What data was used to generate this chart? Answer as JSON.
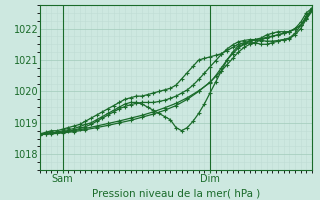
{
  "xlabel": "Pression niveau de la mer( hPa )",
  "bg_color": "#cde8e0",
  "line_color": "#1a6b2a",
  "grid_color_major": "#a8cfc0",
  "grid_color_minor": "#bfddd5",
  "ylim": [
    1017.5,
    1022.75
  ],
  "yticks": [
    1018,
    1019,
    1020,
    1021,
    1022
  ],
  "xlim": [
    0,
    48
  ],
  "sam_x": 4,
  "dim_x": 30,
  "series": [
    [
      0,
      1018.65,
      1,
      1018.7,
      2,
      1018.75,
      3,
      1018.75,
      4,
      1018.8,
      5,
      1018.85,
      6,
      1018.9,
      7,
      1018.95,
      8,
      1019.05,
      9,
      1019.15,
      10,
      1019.25,
      11,
      1019.35,
      12,
      1019.45,
      13,
      1019.55,
      14,
      1019.65,
      15,
      1019.75,
      16,
      1019.8,
      17,
      1019.85,
      18,
      1019.85,
      19,
      1019.9,
      20,
      1019.95,
      21,
      1020.0,
      22,
      1020.05,
      23,
      1020.1,
      24,
      1020.2,
      25,
      1020.4,
      26,
      1020.6,
      27,
      1020.8,
      28,
      1021.0,
      29,
      1021.05,
      30,
      1021.1,
      31,
      1021.15,
      32,
      1021.2,
      33,
      1021.3,
      34,
      1021.4,
      35,
      1021.5,
      36,
      1021.55,
      37,
      1021.6,
      38,
      1021.65,
      39,
      1021.7,
      40,
      1021.8,
      41,
      1021.85,
      42,
      1021.9,
      43,
      1021.9,
      44,
      1021.9,
      45,
      1022.0,
      46,
      1022.2,
      47,
      1022.5,
      48,
      1022.65
    ],
    [
      0,
      1018.6,
      1,
      1018.65,
      2,
      1018.7,
      3,
      1018.7,
      4,
      1018.75,
      5,
      1018.78,
      6,
      1018.82,
      7,
      1018.88,
      8,
      1018.95,
      9,
      1019.0,
      10,
      1019.1,
      11,
      1019.2,
      12,
      1019.3,
      13,
      1019.4,
      14,
      1019.5,
      15,
      1019.6,
      16,
      1019.65,
      17,
      1019.65,
      18,
      1019.6,
      19,
      1019.5,
      20,
      1019.4,
      21,
      1019.3,
      22,
      1019.2,
      23,
      1019.1,
      24,
      1018.85,
      25,
      1018.75,
      26,
      1018.85,
      27,
      1019.05,
      28,
      1019.3,
      29,
      1019.6,
      30,
      1019.95,
      31,
      1020.3,
      32,
      1020.65,
      33,
      1021.0,
      34,
      1021.25,
      35,
      1021.45,
      36,
      1021.5,
      37,
      1021.55,
      38,
      1021.55,
      39,
      1021.5,
      40,
      1021.5,
      41,
      1021.55,
      42,
      1021.6,
      43,
      1021.65,
      44,
      1021.7,
      45,
      1021.85,
      46,
      1022.1,
      47,
      1022.4,
      48,
      1022.6
    ],
    [
      0,
      1018.62,
      1,
      1018.65,
      2,
      1018.67,
      3,
      1018.68,
      4,
      1018.7,
      5,
      1018.73,
      6,
      1018.77,
      7,
      1018.82,
      8,
      1018.88,
      9,
      1018.95,
      10,
      1019.05,
      11,
      1019.15,
      12,
      1019.25,
      13,
      1019.35,
      14,
      1019.45,
      15,
      1019.52,
      16,
      1019.58,
      17,
      1019.62,
      18,
      1019.65,
      19,
      1019.65,
      20,
      1019.65,
      21,
      1019.68,
      22,
      1019.72,
      23,
      1019.78,
      24,
      1019.85,
      25,
      1019.95,
      26,
      1020.05,
      27,
      1020.2,
      28,
      1020.38,
      29,
      1020.58,
      30,
      1020.78,
      31,
      1020.98,
      32,
      1021.18,
      33,
      1021.35,
      34,
      1021.48,
      35,
      1021.58,
      36,
      1021.62,
      37,
      1021.65,
      38,
      1021.65,
      39,
      1021.62,
      40,
      1021.6,
      41,
      1021.6,
      42,
      1021.62,
      43,
      1021.65,
      44,
      1021.68,
      45,
      1021.8,
      46,
      1022.0,
      47,
      1022.3,
      48,
      1022.55
    ],
    [
      0,
      1018.65,
      2,
      1018.65,
      4,
      1018.68,
      6,
      1018.72,
      8,
      1018.78,
      10,
      1018.85,
      12,
      1018.92,
      14,
      1019.0,
      16,
      1019.08,
      18,
      1019.18,
      20,
      1019.28,
      22,
      1019.4,
      24,
      1019.55,
      26,
      1019.75,
      28,
      1020.0,
      30,
      1020.3,
      32,
      1020.65,
      33,
      1020.85,
      34,
      1021.05,
      35,
      1021.25,
      36,
      1021.4,
      37,
      1021.5,
      38,
      1021.55,
      39,
      1021.65,
      40,
      1021.7,
      41,
      1021.75,
      42,
      1021.8,
      43,
      1021.85,
      44,
      1021.9,
      45,
      1022.0,
      46,
      1022.1,
      47,
      1022.35,
      48,
      1022.65
    ],
    [
      0,
      1018.65,
      2,
      1018.68,
      4,
      1018.7,
      6,
      1018.75,
      8,
      1018.82,
      10,
      1018.9,
      12,
      1018.98,
      14,
      1019.06,
      16,
      1019.15,
      18,
      1019.24,
      20,
      1019.35,
      22,
      1019.48,
      24,
      1019.62,
      26,
      1019.8,
      28,
      1020.02,
      30,
      1020.28,
      31,
      1020.5,
      32,
      1020.75,
      33,
      1021.0,
      34,
      1021.2,
      35,
      1021.38,
      36,
      1021.5,
      37,
      1021.6,
      38,
      1021.65,
      39,
      1021.68,
      40,
      1021.72,
      41,
      1021.76,
      42,
      1021.8,
      43,
      1021.85,
      44,
      1021.9,
      45,
      1021.98,
      46,
      1022.1,
      47,
      1022.32,
      48,
      1022.6
    ]
  ]
}
